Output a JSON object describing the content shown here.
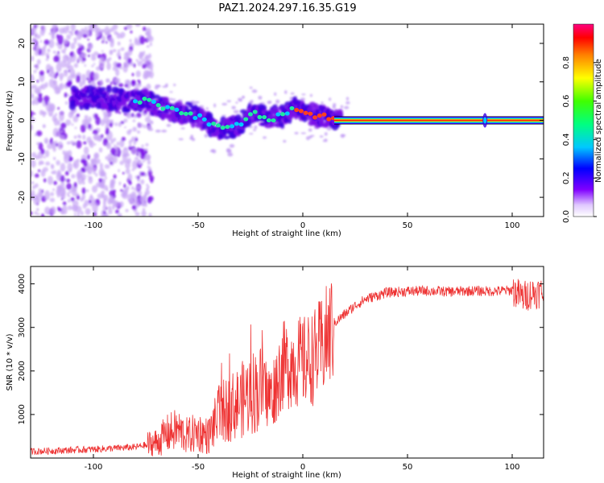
{
  "title": "PAZ1.2024.297.16.35.G19",
  "chart_data": [
    {
      "type": "heatmap",
      "xlabel": "Height of straight line (km)",
      "ylabel": "Frequency (Hz)",
      "xlim": [
        -130,
        115
      ],
      "ylim": [
        -25,
        25
      ],
      "xticks": [
        -100,
        -50,
        0,
        50,
        100
      ],
      "yticks": [
        -20,
        -10,
        0,
        10,
        20
      ],
      "colorbar": {
        "label": "Normalized spectral amplitude",
        "range": [
          0,
          1
        ],
        "ticks": [
          0.0,
          0.2,
          0.4,
          0.6,
          0.8
        ]
      },
      "ridge": {
        "description_values": {
          "x": [
            -100,
            -90,
            -80,
            -75,
            -70,
            -65,
            -60,
            -55,
            -50,
            -45,
            -40,
            -35,
            -30,
            -25,
            -20,
            -15,
            -10,
            -5,
            0,
            5,
            10,
            15,
            20,
            50,
            87,
            100,
            115
          ],
          "y": [
            6,
            5.5,
            5,
            5,
            4,
            3,
            2,
            2,
            1,
            -1,
            -2,
            -2,
            -1,
            2,
            1,
            0.5,
            1,
            3,
            2.5,
            1.5,
            1,
            0.5,
            0,
            0,
            0,
            0,
            0
          ]
        }
      }
    },
    {
      "type": "line",
      "xlabel": "Height of straight line (km)",
      "ylabel": "SNR (10 * v/v)",
      "xlim": [
        -130,
        115
      ],
      "ylim": [
        0,
        4400
      ],
      "xticks": [
        -100,
        -50,
        0,
        50,
        100
      ],
      "yticks": [
        1000,
        2000,
        3000,
        4000
      ],
      "color": "#ee3333",
      "envelope": {
        "x": [
          -130,
          -100,
          -80,
          -70,
          -65,
          -60,
          -55,
          -50,
          -45,
          -40,
          -35,
          -30,
          -25,
          -20,
          -15,
          -10,
          -5,
          0,
          5,
          10,
          15,
          20,
          25,
          30,
          40,
          50,
          60,
          70,
          80,
          90,
          100,
          105,
          110,
          115
        ],
        "y": [
          150,
          200,
          250,
          350,
          550,
          650,
          500,
          600,
          500,
          1000,
          1150,
          1300,
          1500,
          1600,
          1400,
          2100,
          2200,
          2200,
          2300,
          2600,
          3100,
          3300,
          3500,
          3650,
          3800,
          3830,
          3840,
          3820,
          3840,
          3830,
          3850,
          3700,
          3800,
          3800
        ]
      }
    }
  ]
}
